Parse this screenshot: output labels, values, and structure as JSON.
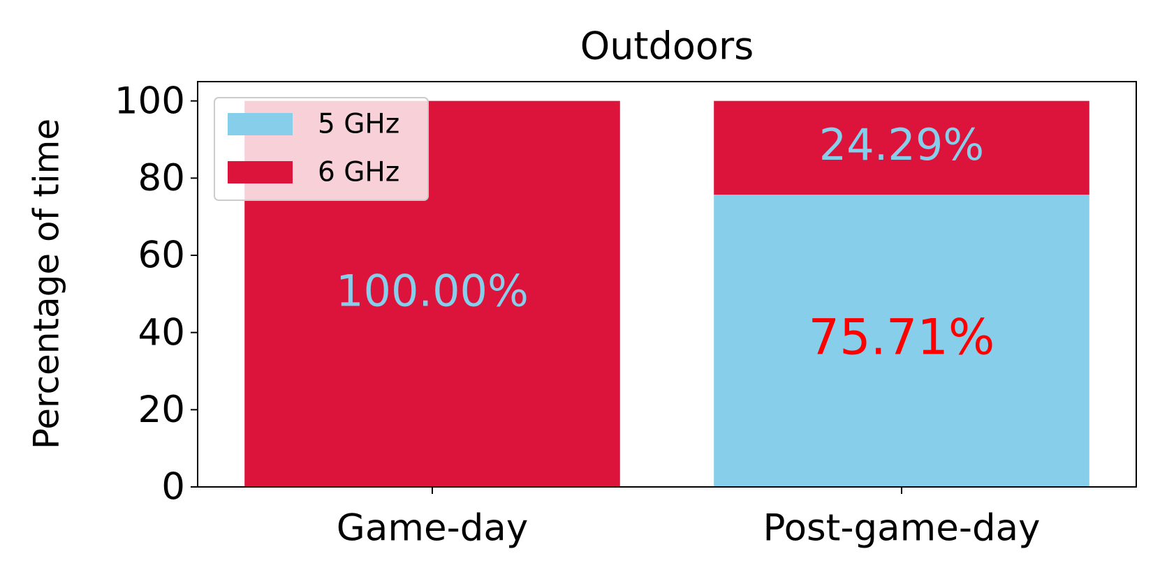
{
  "chart_data": {
    "type": "stacked-bar",
    "title": "Outdoors",
    "ylabel": "Percentage of time",
    "categories": [
      "Game-day",
      "Post-game-day"
    ],
    "series": [
      {
        "name": "5 GHz",
        "color": "#87ceeb",
        "values": [
          0,
          75.71
        ],
        "value_labels": [
          null,
          "75.71%"
        ],
        "label_color": "#ff0000"
      },
      {
        "name": "6 GHz",
        "color": "#dc143c",
        "values": [
          100,
          24.29
        ],
        "value_labels": [
          "100.00%",
          "24.29%"
        ],
        "label_color": "#87ceeb"
      }
    ],
    "ylim": [
      0,
      105
    ],
    "yticks": [
      0,
      20,
      40,
      60,
      80,
      100
    ],
    "legend": "upper left"
  }
}
